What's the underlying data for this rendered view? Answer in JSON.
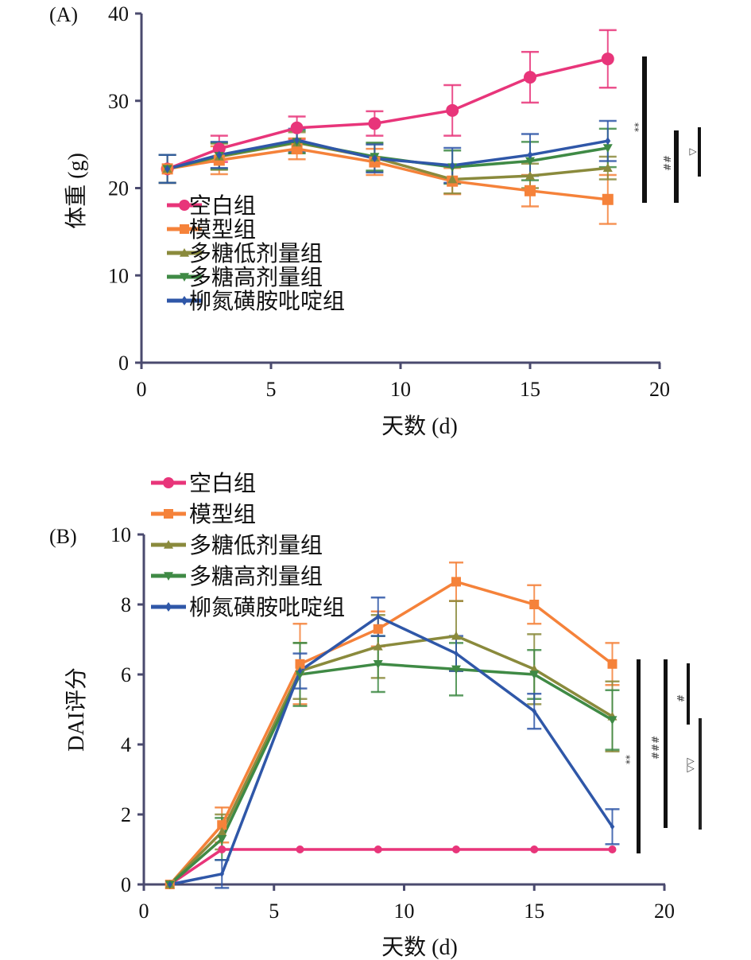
{
  "chart_data": [
    {
      "type": "line",
      "panel_label": "(A)",
      "title": "",
      "xlabel": "天数 (d)",
      "ylabel": "体重 (g)",
      "xlim": [
        0,
        20
      ],
      "ylim": [
        0,
        40
      ],
      "xticks": [
        0,
        5,
        10,
        15,
        20
      ],
      "yticks": [
        0,
        10,
        20,
        30,
        40
      ],
      "grid": false,
      "legend_position": "lower-left",
      "x": [
        1,
        3,
        6,
        9,
        12,
        15,
        18
      ],
      "series": [
        {
          "name": "空白组",
          "color": "#e8357a",
          "marker": "circle",
          "values": [
            22.2,
            24.5,
            26.9,
            27.4,
            28.9,
            32.7,
            34.8
          ],
          "errors": [
            1.6,
            1.5,
            1.3,
            1.4,
            2.9,
            2.9,
            3.3
          ]
        },
        {
          "name": "模型组",
          "color": "#f5823a",
          "marker": "square",
          "values": [
            22.2,
            23.2,
            24.5,
            23.0,
            20.8,
            19.7,
            18.7
          ],
          "errors": [
            1.6,
            1.6,
            1.2,
            1.5,
            1.5,
            1.8,
            2.8
          ]
        },
        {
          "name": "多糖低剂量组",
          "color": "#8a8a3c",
          "marker": "triangle-up",
          "values": [
            22.2,
            23.6,
            25.2,
            23.5,
            21.0,
            21.4,
            22.3
          ],
          "errors": [
            1.6,
            1.5,
            1.2,
            1.6,
            1.6,
            1.4,
            1.3
          ]
        },
        {
          "name": "多糖高剂量组",
          "color": "#3f8a45",
          "marker": "triangle-down",
          "values": [
            22.2,
            23.7,
            25.3,
            23.6,
            22.4,
            23.1,
            24.6
          ],
          "errors": [
            1.6,
            1.5,
            1.3,
            1.6,
            1.9,
            2.2,
            2.2
          ]
        },
        {
          "name": "柳氮磺胺吡啶组",
          "color": "#2f57a8",
          "marker": "diamond",
          "values": [
            22.2,
            23.8,
            25.5,
            23.4,
            22.6,
            23.8,
            25.4
          ],
          "errors": [
            1.6,
            1.5,
            1.3,
            1.6,
            2.0,
            2.4,
            2.3
          ]
        }
      ],
      "annotations": [
        {
          "text": "**",
          "compares": "空白组 vs 模型组"
        },
        {
          "text": "##",
          "compares": "模型组 vs 多糖高剂量组"
        },
        {
          "text": "△",
          "compares": "模型组 vs 柳氮磺胺吡啶组"
        }
      ]
    },
    {
      "type": "line",
      "panel_label": "(B)",
      "title": "",
      "xlabel": "天数 (d)",
      "ylabel": "DAI评分",
      "xlim": [
        0,
        20
      ],
      "ylim": [
        0,
        10
      ],
      "xticks": [
        0,
        5,
        10,
        15,
        20
      ],
      "yticks": [
        0,
        2,
        4,
        6,
        8,
        10
      ],
      "grid": false,
      "legend_position": "top-left",
      "x": [
        1,
        3,
        6,
        9,
        12,
        15,
        18
      ],
      "series": [
        {
          "name": "空白组",
          "color": "#e8357a",
          "marker": "circle",
          "values": [
            0,
            1,
            1,
            1,
            1,
            1,
            1
          ],
          "errors": [
            0,
            0,
            0,
            0,
            0,
            0,
            0
          ]
        },
        {
          "name": "模型组",
          "color": "#f5823a",
          "marker": "square",
          "values": [
            0,
            1.7,
            6.3,
            7.3,
            8.65,
            8.0,
            6.3
          ],
          "errors": [
            0,
            0.5,
            1.15,
            0.5,
            0.55,
            0.55,
            0.6
          ]
        },
        {
          "name": "多糖低剂量组",
          "color": "#8a8a3c",
          "marker": "triangle-up",
          "values": [
            0,
            1.5,
            6.1,
            6.8,
            7.1,
            6.15,
            4.8
          ],
          "errors": [
            0,
            0.5,
            0.8,
            0.9,
            1.0,
            1.0,
            1.0
          ]
        },
        {
          "name": "多糖高剂量组",
          "color": "#3f8a45",
          "marker": "triangle-down",
          "values": [
            0,
            1.3,
            6.0,
            6.3,
            6.15,
            6.0,
            4.7
          ],
          "errors": [
            0,
            0.6,
            0.9,
            0.8,
            0.75,
            0.7,
            0.85
          ]
        },
        {
          "name": "柳氮磺胺吡啶组",
          "color": "#2f57a8",
          "marker": "diamond",
          "values": [
            0,
            0.3,
            6.1,
            7.65,
            6.6,
            4.95,
            1.65
          ],
          "errors": [
            0,
            0.4,
            0.5,
            0.55,
            0.5,
            0.5,
            0.5
          ]
        }
      ],
      "annotations": [
        {
          "text": "**",
          "compares": "空白组 vs 模型组"
        },
        {
          "text": "###",
          "compares": "模型组 vs 柳氮磺胺吡啶组"
        },
        {
          "text": "#",
          "compares": "模型组 vs 多糖剂量组"
        },
        {
          "text": "△△",
          "compares": "多糖组 vs 柳氮磺胺吡啶组"
        }
      ]
    }
  ]
}
